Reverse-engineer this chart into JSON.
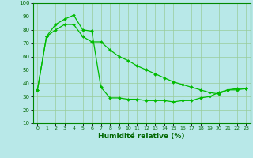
{
  "xlabel": "Humidité relative (%)",
  "bg_color": "#b8e8e8",
  "line_color": "#00bb00",
  "grid_color": "#99cc99",
  "x_ticks": [
    0,
    1,
    2,
    3,
    4,
    5,
    6,
    7,
    8,
    9,
    10,
    11,
    12,
    13,
    14,
    15,
    16,
    17,
    18,
    19,
    20,
    21,
    22,
    23
  ],
  "ylim": [
    10,
    100
  ],
  "xlim": [
    -0.5,
    23.5
  ],
  "yticks": [
    10,
    20,
    30,
    40,
    50,
    60,
    70,
    80,
    90,
    100
  ],
  "line1_x": [
    0,
    1,
    2,
    3,
    4,
    5,
    6,
    7,
    8,
    9,
    10,
    11,
    12,
    13,
    14,
    15,
    16,
    17,
    18,
    19,
    20,
    21,
    22,
    23
  ],
  "line1_y": [
    35,
    75,
    84,
    88,
    91,
    80,
    79,
    37,
    29,
    29,
    28,
    28,
    27,
    27,
    27,
    26,
    27,
    27,
    29,
    30,
    33,
    35,
    36,
    36
  ],
  "line2_x": [
    0,
    1,
    2,
    3,
    4,
    5,
    6,
    7,
    8,
    9,
    10,
    11,
    12,
    13,
    14,
    15,
    16,
    17,
    18,
    19,
    20,
    21,
    22,
    23
  ],
  "line2_y": [
    35,
    75,
    80,
    84,
    84,
    75,
    71,
    71,
    65,
    60,
    57,
    53,
    50,
    47,
    44,
    41,
    39,
    37,
    35,
    33,
    32,
    35,
    35,
    36
  ]
}
